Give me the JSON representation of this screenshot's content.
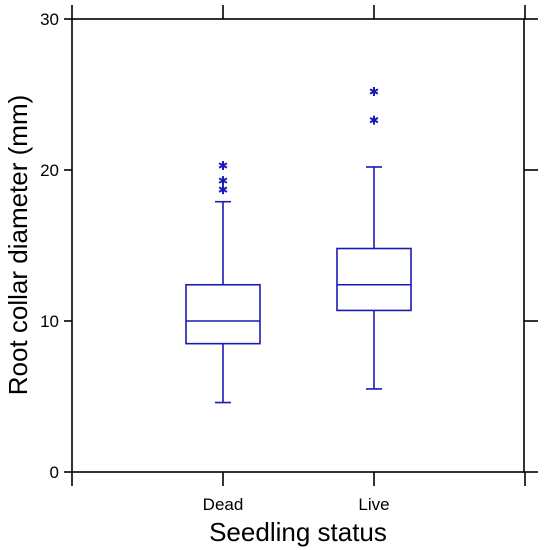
{
  "chart_data": {
    "type": "boxplot",
    "xlabel": "Seedling status",
    "ylabel": "Root collar diameter (mm)",
    "ylim": [
      0,
      30
    ],
    "yticks": [
      0,
      10,
      20,
      30
    ],
    "categories": [
      "Dead",
      "Live"
    ],
    "boxes": [
      {
        "category": "Dead",
        "whisker_low": 4.6,
        "q1": 8.5,
        "median": 10.0,
        "q3": 12.4,
        "whisker_high": 17.9,
        "outliers": [
          18.7,
          19.3,
          20.3
        ]
      },
      {
        "category": "Live",
        "whisker_low": 5.5,
        "q1": 10.7,
        "median": 12.4,
        "q3": 14.8,
        "whisker_high": 20.2,
        "outliers": [
          23.3,
          25.2
        ]
      }
    ],
    "colors": {
      "box": "#1a1ab4",
      "outlier": "#1a1ab4",
      "frame": "#000000"
    },
    "grid": false
  }
}
